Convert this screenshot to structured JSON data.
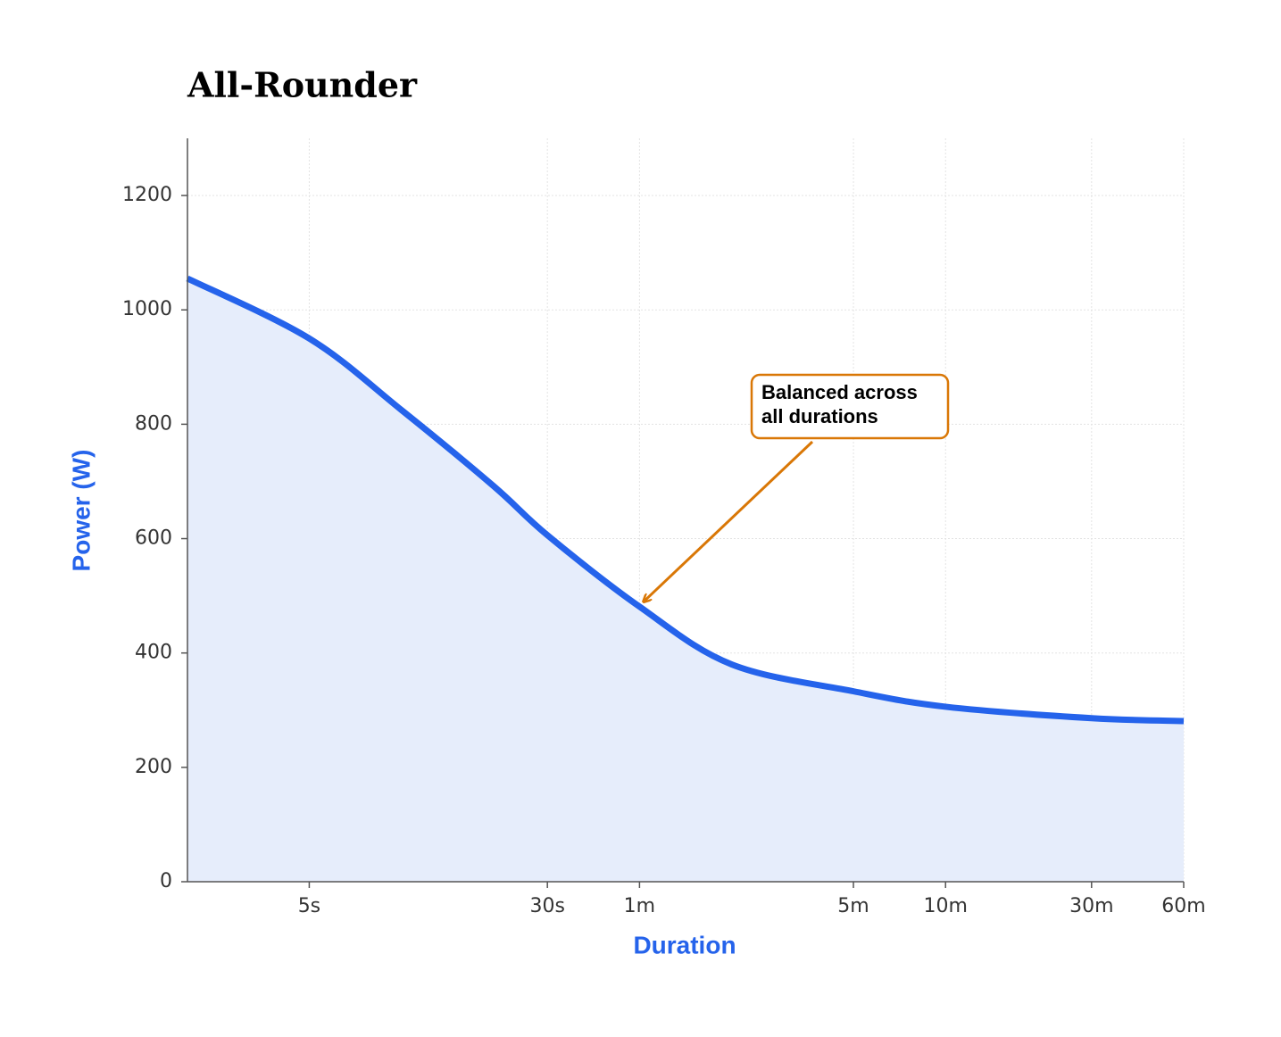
{
  "chart_data": {
    "type": "area",
    "title": "All-Rounder",
    "x_label": "Duration",
    "y_label": "Power (W)",
    "x": [
      2,
      5,
      10,
      20,
      30,
      60,
      120,
      300,
      600,
      1800,
      3600
    ],
    "series": [
      {
        "name": "Power",
        "color": "#2563eb",
        "fill": "#e6edfb",
        "values": [
          1055,
          950,
          825,
          692,
          606,
          481,
          380,
          333,
          306,
          286,
          281
        ]
      }
    ],
    "xscale": "log",
    "xlim": [
      2,
      3600
    ],
    "xticks": [
      {
        "value": 5,
        "label": "5s"
      },
      {
        "value": 30,
        "label": "30s"
      },
      {
        "value": 60,
        "label": "1m"
      },
      {
        "value": 300,
        "label": "5m"
      },
      {
        "value": 600,
        "label": "10m"
      },
      {
        "value": 1800,
        "label": "30m"
      },
      {
        "value": 3600,
        "label": "60m"
      }
    ],
    "ylim": [
      0,
      1300
    ],
    "yticks": [
      0,
      200,
      400,
      600,
      800,
      1000,
      1200
    ],
    "grid": true,
    "annotation": {
      "lines": [
        "Balanced across",
        "all durations"
      ],
      "x": 60,
      "y": 481,
      "color": "#d97706"
    }
  }
}
